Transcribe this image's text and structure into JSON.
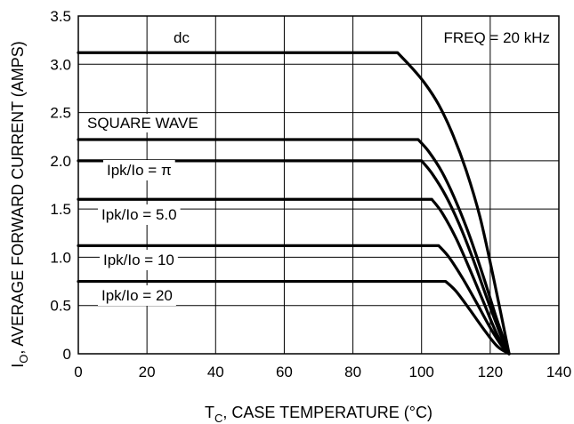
{
  "chart_data": {
    "type": "line",
    "xlabel": {
      "main": "T",
      "sub": "C",
      "rest": ", CASE TEMPERATURE (°C)"
    },
    "ylabel": {
      "main": "I",
      "sub": "O",
      "rest": ", AVERAGE FORWARD CURRENT (AMPS)"
    },
    "xlim": [
      0,
      140
    ],
    "ylim": [
      0,
      3.5
    ],
    "xticks": [
      0,
      20,
      40,
      60,
      80,
      100,
      120,
      140
    ],
    "yticks": [
      0,
      0.5,
      1.0,
      1.5,
      2.0,
      2.5,
      3.0,
      3.5
    ],
    "ytick_labels": [
      "0",
      "0.5",
      "1.0",
      "1.5",
      "2.0",
      "2.5",
      "3.0",
      "3.5"
    ],
    "grid": true,
    "annotations": {
      "freq": "FREQ = 20 kHz",
      "dc": "dc",
      "square_wave": "SQUARE WAVE",
      "pi": "Ipk/Io = π",
      "r5": "Ipk/Io = 5.0",
      "r10": "Ipk/Io = 10",
      "r20": "Ipk/Io = 20"
    },
    "series": [
      {
        "id": "dc",
        "x": [
          0,
          93,
          97,
          101,
          105,
          109,
          113,
          117,
          121,
          125.5
        ],
        "y": [
          3.12,
          3.12,
          2.97,
          2.8,
          2.58,
          2.28,
          1.9,
          1.42,
          0.78,
          0.0
        ]
      },
      {
        "id": "square",
        "x": [
          0,
          99,
          102,
          106,
          110,
          114,
          118,
          122,
          125.5
        ],
        "y": [
          2.22,
          2.22,
          2.1,
          1.88,
          1.58,
          1.22,
          0.8,
          0.35,
          0.0
        ]
      },
      {
        "id": "pi",
        "x": [
          0,
          100,
          103,
          107,
          111,
          115,
          119,
          123,
          125.5
        ],
        "y": [
          2.0,
          2.0,
          1.87,
          1.64,
          1.34,
          0.98,
          0.58,
          0.2,
          0.0
        ]
      },
      {
        "id": "r5",
        "x": [
          0,
          103,
          106,
          110,
          114,
          118,
          122,
          125.5
        ],
        "y": [
          1.6,
          1.6,
          1.46,
          1.2,
          0.88,
          0.54,
          0.2,
          0.0
        ]
      },
      {
        "id": "r10",
        "x": [
          0,
          105,
          108,
          112,
          116,
          120,
          123,
          125.5
        ],
        "y": [
          1.12,
          1.12,
          1.0,
          0.78,
          0.53,
          0.27,
          0.1,
          0.0
        ]
      },
      {
        "id": "r20",
        "x": [
          0,
          107,
          110,
          114,
          118,
          122,
          125.5
        ],
        "y": [
          0.75,
          0.75,
          0.65,
          0.46,
          0.26,
          0.08,
          0.0
        ]
      }
    ]
  }
}
